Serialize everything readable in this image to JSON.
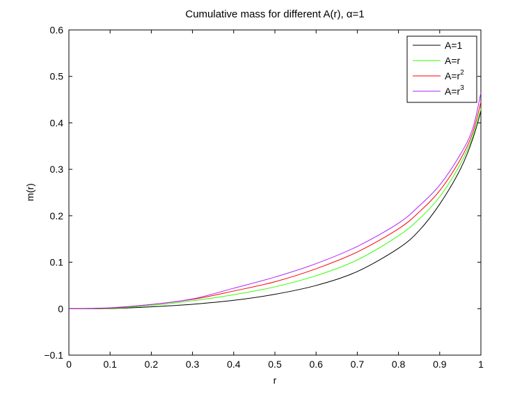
{
  "chart_data": {
    "type": "line",
    "title": "Cumulative mass for different A(r), α=1",
    "xlabel": "r",
    "ylabel": "m(r)",
    "xlim": [
      0,
      1
    ],
    "ylim": [
      -0.1,
      0.6
    ],
    "xticks": [
      "0",
      "0.1",
      "0.2",
      "0.3",
      "0.4",
      "0.5",
      "0.6",
      "0.7",
      "0.8",
      "0.9",
      "1"
    ],
    "yticks": [
      "−0.1",
      "0",
      "0.1",
      "0.2",
      "0.3",
      "0.4",
      "0.5",
      "0.6"
    ],
    "grid": false,
    "legend": "top-right",
    "x": [
      0,
      0.1,
      0.2,
      0.3,
      0.4,
      0.5,
      0.6,
      0.7,
      0.8,
      0.85,
      0.9,
      0.95,
      0.98,
      1.0
    ],
    "series": [
      {
        "name": "A=1",
        "color": "#000000",
        "legend_base": "A=1",
        "legend_sup": "",
        "values": [
          0,
          0.0003,
          0.004,
          0.0095,
          0.018,
          0.031,
          0.05,
          0.08,
          0.13,
          0.168,
          0.225,
          0.3,
          0.365,
          0.425
        ]
      },
      {
        "name": "A=r",
        "color": "#33ff00",
        "legend_base": "A=r",
        "legend_sup": "",
        "values": [
          0,
          0.0008,
          0.007,
          0.017,
          0.03,
          0.047,
          0.071,
          0.105,
          0.157,
          0.193,
          0.241,
          0.311,
          0.37,
          0.43
        ]
      },
      {
        "name": "A=r^2",
        "color": "#ff0000",
        "legend_base": "A=r",
        "legend_sup": "2",
        "values": [
          0,
          0.0015,
          0.009,
          0.02,
          0.038,
          0.058,
          0.086,
          0.122,
          0.172,
          0.208,
          0.254,
          0.321,
          0.378,
          0.445
        ]
      },
      {
        "name": "A=r^3",
        "color": "#aa22ff",
        "legend_base": "A=r",
        "legend_sup": "3",
        "values": [
          0,
          0.002,
          0.009,
          0.021,
          0.044,
          0.068,
          0.097,
          0.134,
          0.184,
          0.221,
          0.266,
          0.332,
          0.387,
          0.465
        ]
      }
    ]
  }
}
